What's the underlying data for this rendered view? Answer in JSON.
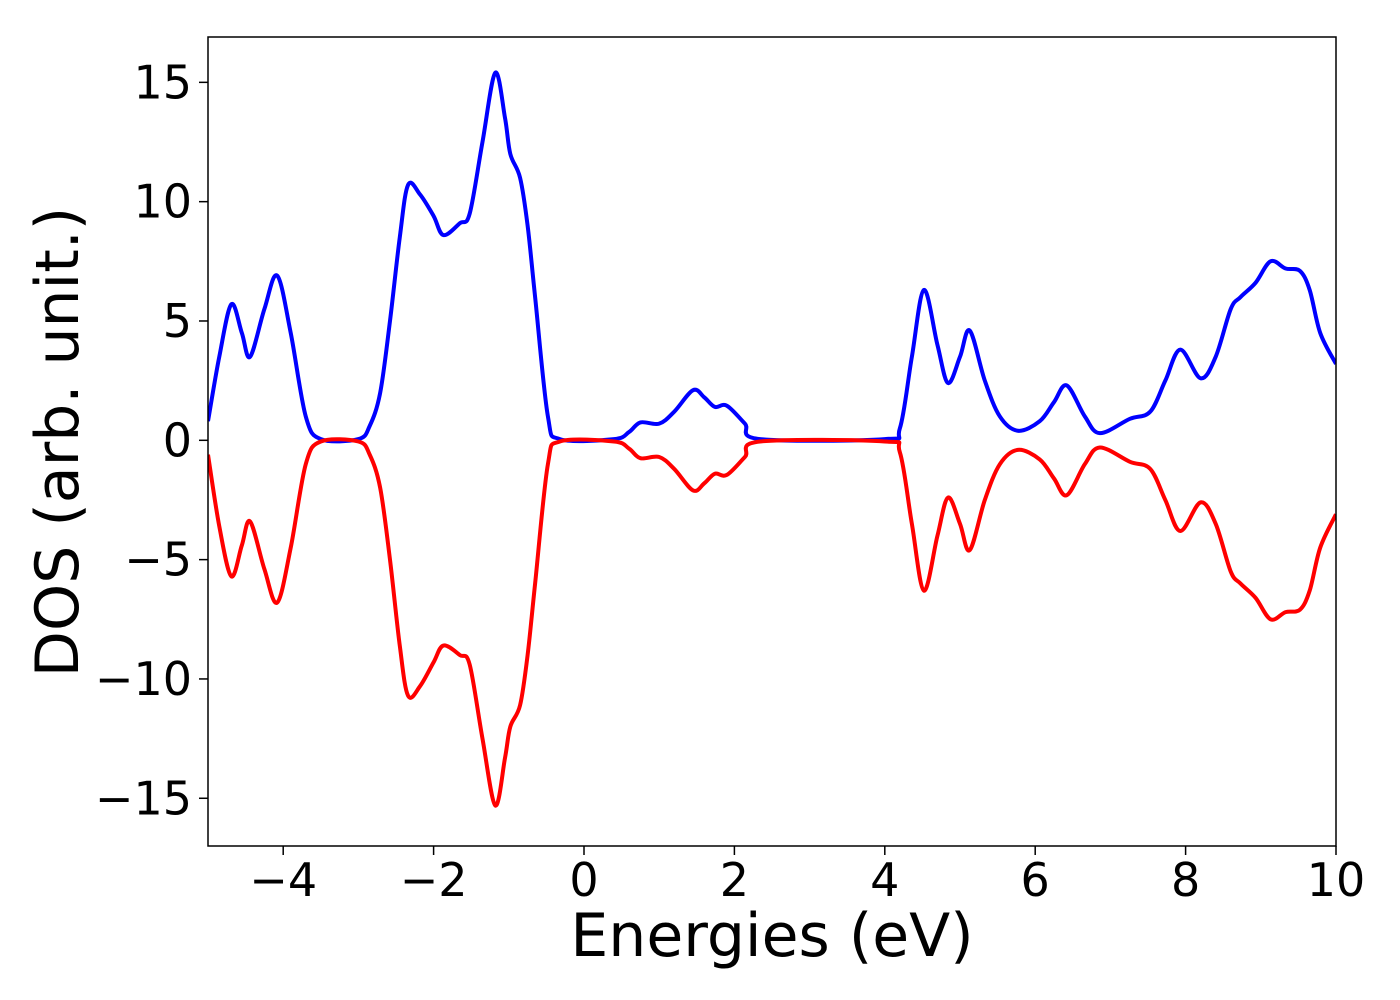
{
  "chart_data": {
    "type": "line",
    "xlabel": "Energies (eV)",
    "ylabel": "DOS (arb. unit.)",
    "x": [
      -5,
      -4.85,
      -4.69,
      -4.55,
      -4.44,
      -4.25,
      -4.08,
      -3.9,
      -3.7,
      -3.5,
      -3.0,
      -2.85,
      -2.71,
      -2.58,
      -2.45,
      -2.34,
      -2.18,
      -2.0,
      -1.87,
      -1.65,
      -1.52,
      -1.35,
      -1.18,
      -1.05,
      -0.98,
      -0.85,
      -0.75,
      -0.65,
      -0.48,
      -0.32,
      0.4,
      0.6,
      0.75,
      1.0,
      1.2,
      1.45,
      1.6,
      1.74,
      1.9,
      2.14,
      2.34,
      4.0,
      4.2,
      4.36,
      4.52,
      4.7,
      4.84,
      5.0,
      5.13,
      5.33,
      5.53,
      5.77,
      6.06,
      6.25,
      6.42,
      6.66,
      6.86,
      7.26,
      7.53,
      7.73,
      7.93,
      8.2,
      8.4,
      8.6,
      8.73,
      8.93,
      9.13,
      9.33,
      9.52,
      9.65,
      9.79,
      10
    ],
    "series": [
      {
        "color": "#0000ff",
        "values": [
          0.8,
          3.5,
          5.7,
          4.5,
          3.5,
          5.5,
          6.9,
          4.5,
          1.0,
          0.05,
          0.05,
          0.6,
          2.0,
          5.0,
          8.5,
          10.7,
          10.3,
          9.4,
          8.6,
          9.1,
          9.5,
          12.5,
          15.4,
          13.5,
          12,
          11,
          9,
          6,
          1,
          0.05,
          0.05,
          0.35,
          0.75,
          0.7,
          1.2,
          2.1,
          1.8,
          1.4,
          1.45,
          0.7,
          0.05,
          0.05,
          0.5,
          3.5,
          6.3,
          4,
          2.4,
          3.5,
          4.6,
          2.5,
          1,
          0.4,
          0.8,
          1.6,
          2.3,
          1,
          0.3,
          0.9,
          1.2,
          2.5,
          3.8,
          2.6,
          3.5,
          5.5,
          6,
          6.6,
          7.5,
          7.2,
          7.1,
          6.3,
          4.5,
          3.2
        ]
      },
      {
        "color": "#ff0000",
        "values": [
          -0.6,
          -3.6,
          -5.7,
          -4.4,
          -3.4,
          -5.4,
          -6.8,
          -4.5,
          -1.0,
          -0.05,
          -0.05,
          -0.6,
          -2.0,
          -5.0,
          -8.6,
          -10.7,
          -10.3,
          -9.3,
          -8.6,
          -9.0,
          -9.4,
          -12.5,
          -15.3,
          -13.3,
          -12,
          -11.1,
          -9,
          -6,
          -1,
          -0.05,
          -0.05,
          -0.35,
          -0.75,
          -0.7,
          -1.2,
          -2.1,
          -1.8,
          -1.4,
          -1.45,
          -0.7,
          -0.05,
          -0.05,
          -0.5,
          -3.5,
          -6.3,
          -4,
          -2.4,
          -3.5,
          -4.6,
          -2.5,
          -1,
          -0.4,
          -0.8,
          -1.6,
          -2.3,
          -1,
          -0.3,
          -0.9,
          -1.2,
          -2.5,
          -3.8,
          -2.6,
          -3.5,
          -5.5,
          -6,
          -6.6,
          -7.5,
          -7.2,
          -7.1,
          -6.3,
          -4.5,
          -3.1
        ]
      }
    ],
    "xlim": [
      -5,
      10
    ],
    "ylim": [
      -17,
      16.9
    ],
    "xticks": [
      {
        "value": -4,
        "label": "−4"
      },
      {
        "value": -2,
        "label": "−2"
      },
      0,
      2,
      4,
      6,
      8,
      10
    ],
    "yticks": [
      {
        "value": -15,
        "label": "−15"
      },
      {
        "value": -10,
        "label": "−10"
      },
      {
        "value": -5,
        "label": "−5"
      },
      0,
      5,
      10,
      15
    ]
  }
}
